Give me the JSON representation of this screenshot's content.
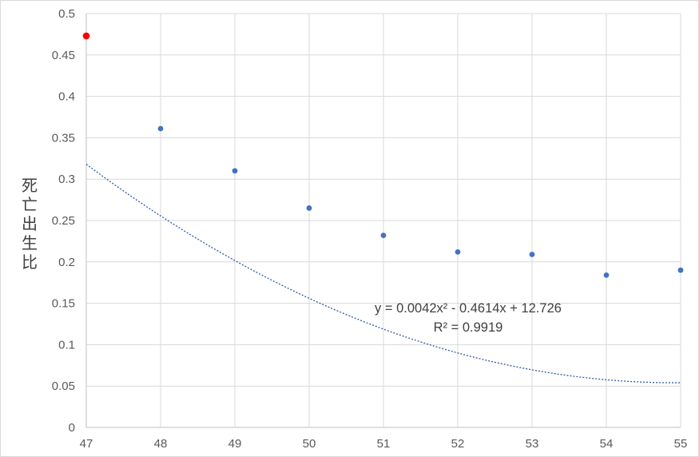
{
  "chart_data": {
    "type": "scatter",
    "ylabel": "死亡出生比",
    "xlim": [
      47,
      55
    ],
    "ylim": [
      0,
      0.5
    ],
    "x_ticks": [
      "47",
      "48",
      "49",
      "50",
      "51",
      "52",
      "53",
      "54",
      "55"
    ],
    "y_ticks": [
      "0",
      "0.05",
      "0.1",
      "0.15",
      "0.2",
      "0.25",
      "0.3",
      "0.35",
      "0.4",
      "0.45",
      "0.5"
    ],
    "grid": true,
    "points": [
      {
        "x": 48,
        "y": 0.361
      },
      {
        "x": 49,
        "y": 0.31
      },
      {
        "x": 50,
        "y": 0.265
      },
      {
        "x": 51,
        "y": 0.232
      },
      {
        "x": 52,
        "y": 0.212
      },
      {
        "x": 53,
        "y": 0.209
      },
      {
        "x": 54,
        "y": 0.184
      },
      {
        "x": 55,
        "y": 0.19
      }
    ],
    "highlight_point": {
      "x": 47,
      "y": 0.473
    },
    "trendline": {
      "type": "polynomial",
      "coefficients": [
        0.0042,
        -0.4614,
        12.726
      ],
      "equation": "y = 0.0042x² - 0.4614x + 12.726",
      "r_squared": "R² = 0.9919"
    },
    "colors": {
      "points": "#4472c4",
      "trendline": "#2e5aa8",
      "highlight": "#ff0000",
      "grid": "#d9d9d9",
      "axis": "#bfbfbf"
    }
  }
}
